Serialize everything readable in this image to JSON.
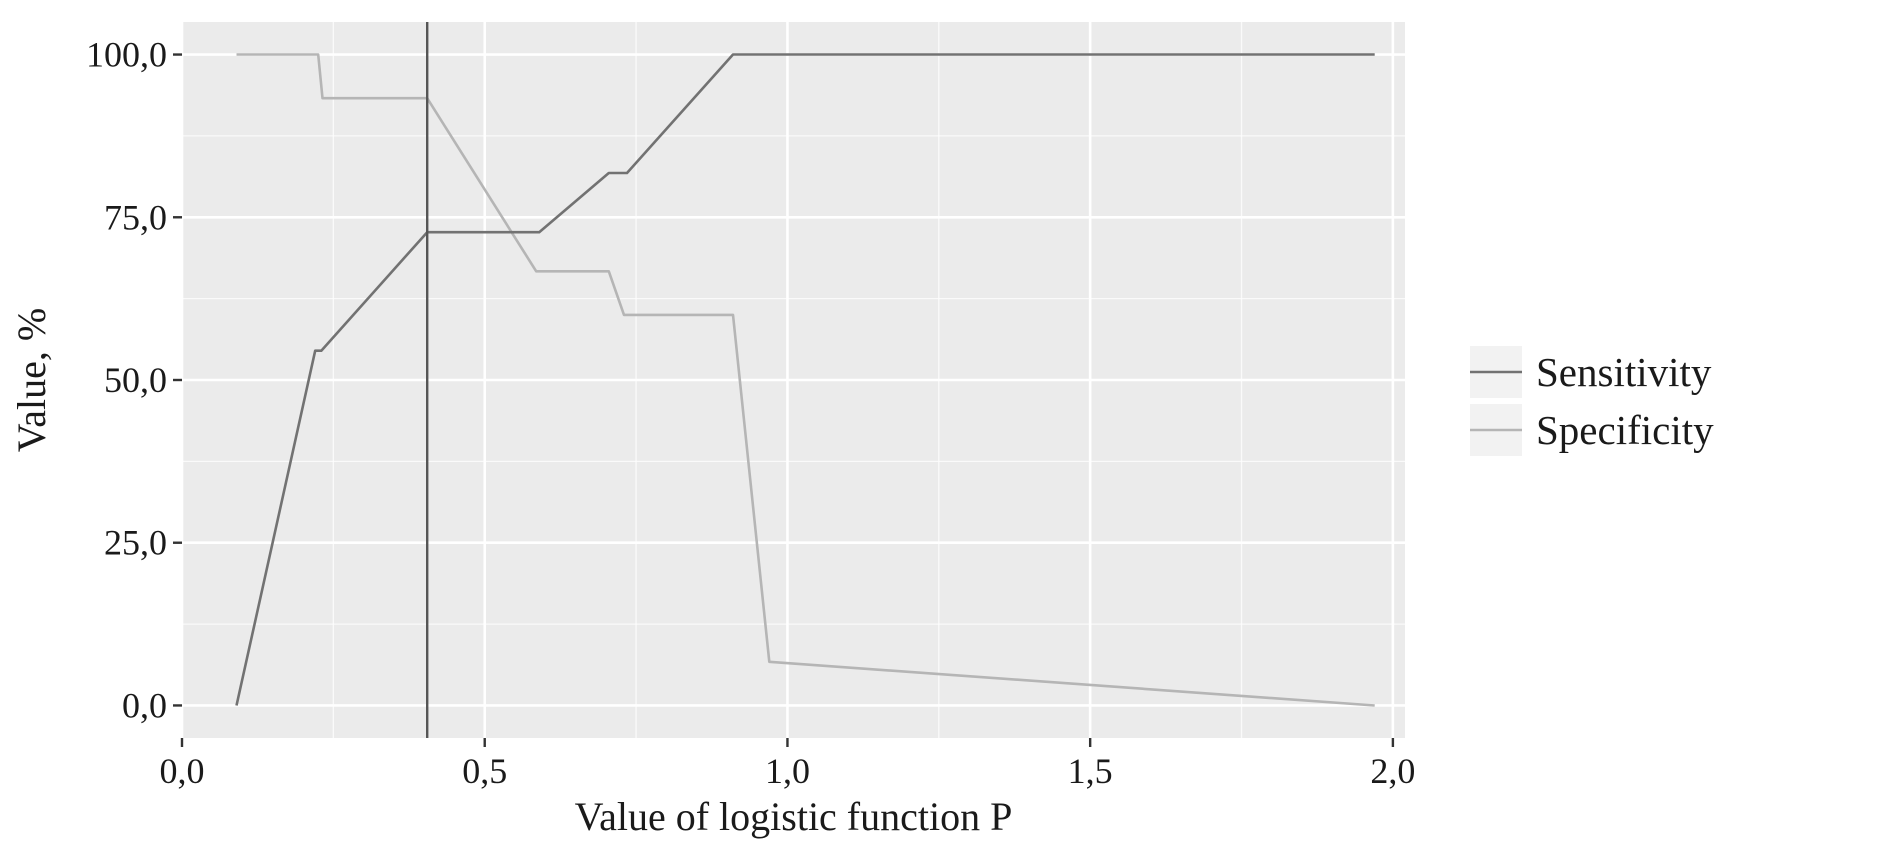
{
  "chart_data": {
    "type": "line",
    "title": "",
    "xlabel": "Value of logistic function P",
    "ylabel": "Value, %",
    "xlim": [
      0.0,
      2.02
    ],
    "ylim": [
      -5.0,
      105.0
    ],
    "x_ticks": [
      0.0,
      0.5,
      1.0,
      1.5,
      2.0
    ],
    "x_tick_labels": [
      "0,0",
      "0,5",
      "1,0",
      "1,5",
      "2,0"
    ],
    "y_ticks": [
      0,
      25,
      50,
      75,
      100
    ],
    "y_tick_labels": [
      "0,0",
      "25,0",
      "50,0",
      "75,0",
      "100,0"
    ],
    "grid": true,
    "legend_position": "right",
    "vertical_reference_line_x": 0.405,
    "colors": {
      "panel_background": "#ebebeb",
      "grid": "#ffffff",
      "reference_line": "#555555"
    },
    "series": [
      {
        "name": "Sensitivity",
        "color": "#727272",
        "x": [
          0.09,
          0.22,
          0.23,
          0.405,
          0.59,
          0.705,
          0.735,
          0.91,
          1.97
        ],
        "y": [
          0.0,
          54.5,
          54.5,
          72.7,
          72.7,
          81.8,
          81.8,
          100.0,
          100.0
        ]
      },
      {
        "name": "Specificity",
        "color": "#b5b5b5",
        "x": [
          0.09,
          0.225,
          0.232,
          0.405,
          0.585,
          0.705,
          0.73,
          0.91,
          0.97,
          1.97
        ],
        "y": [
          100.0,
          100.0,
          93.3,
          93.3,
          66.7,
          66.7,
          60.0,
          60.0,
          6.7,
          0.0
        ]
      }
    ]
  }
}
